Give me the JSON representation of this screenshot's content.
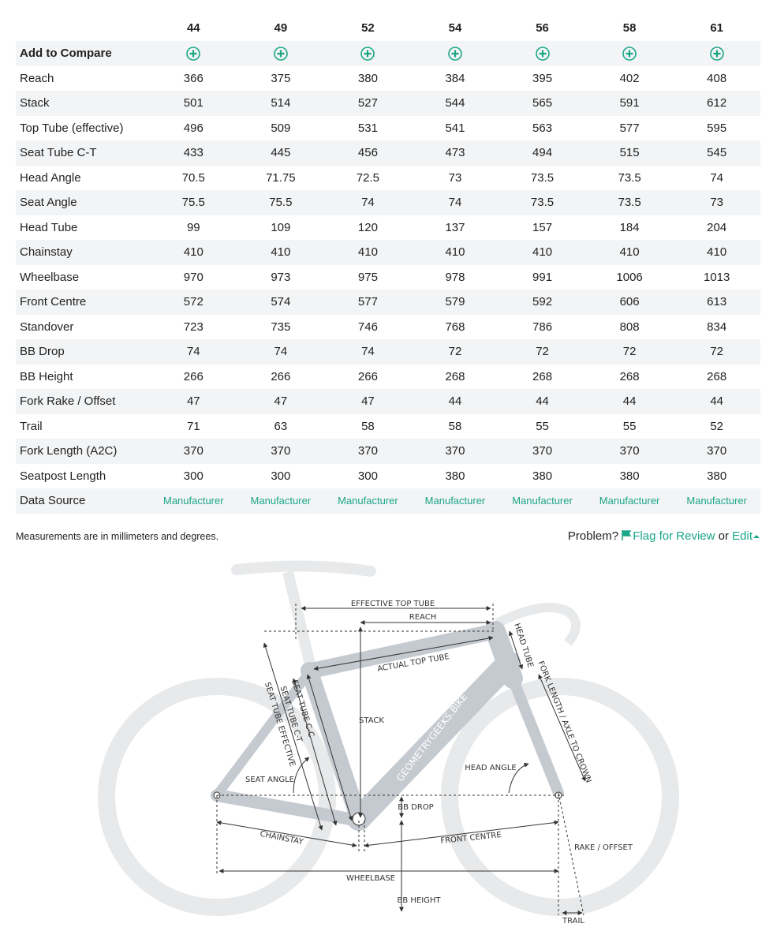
{
  "table": {
    "sizes": [
      44,
      49,
      52,
      54,
      56,
      58,
      61
    ],
    "compare_label": "Add to Compare",
    "rows": [
      {
        "label": "Reach",
        "values": [
          366,
          375,
          380,
          384,
          395,
          402,
          408
        ]
      },
      {
        "label": "Stack",
        "values": [
          501,
          514,
          527,
          544,
          565,
          591,
          612
        ]
      },
      {
        "label": "Top Tube (effective)",
        "values": [
          496,
          509,
          531,
          541,
          563,
          577,
          595
        ]
      },
      {
        "label": "Seat Tube C-T",
        "values": [
          433,
          445,
          456,
          473,
          494,
          515,
          545
        ]
      },
      {
        "label": "Head Angle",
        "values": [
          70.5,
          71.75,
          72.5,
          73,
          73.5,
          73.5,
          74
        ]
      },
      {
        "label": "Seat Angle",
        "values": [
          75.5,
          75.5,
          74,
          74,
          73.5,
          73.5,
          73
        ]
      },
      {
        "label": "Head Tube",
        "values": [
          99,
          109,
          120,
          137,
          157,
          184,
          204
        ]
      },
      {
        "label": "Chainstay",
        "values": [
          410,
          410,
          410,
          410,
          410,
          410,
          410
        ]
      },
      {
        "label": "Wheelbase",
        "values": [
          970,
          973,
          975,
          978,
          991,
          1006,
          1013
        ]
      },
      {
        "label": "Front Centre",
        "values": [
          572,
          574,
          577,
          579,
          592,
          606,
          613
        ]
      },
      {
        "label": "Standover",
        "values": [
          723,
          735,
          746,
          768,
          786,
          808,
          834
        ]
      },
      {
        "label": "BB Drop",
        "values": [
          74,
          74,
          74,
          72,
          72,
          72,
          72
        ]
      },
      {
        "label": "BB Height",
        "values": [
          266,
          266,
          266,
          268,
          268,
          268,
          268
        ]
      },
      {
        "label": "Fork Rake / Offset",
        "values": [
          47,
          47,
          47,
          44,
          44,
          44,
          44
        ]
      },
      {
        "label": "Trail",
        "values": [
          71,
          63,
          58,
          58,
          55,
          55,
          52
        ]
      },
      {
        "label": "Fork Length (A2C)",
        "values": [
          370,
          370,
          370,
          370,
          370,
          370,
          370
        ]
      },
      {
        "label": "Seatpost Length",
        "values": [
          300,
          300,
          300,
          380,
          380,
          380,
          380
        ]
      }
    ],
    "source_label": "Data Source",
    "sources": [
      "Manufacturer",
      "Manufacturer",
      "Manufacturer",
      "Manufacturer",
      "Manufacturer",
      "Manufacturer",
      "Manufacturer"
    ]
  },
  "footer": {
    "note": "Measurements are in millimeters and degrees.",
    "problem": "Problem?",
    "flag": "Flag for Review",
    "or": "or",
    "edit": "Edit"
  },
  "diagram": {
    "labels": [
      "EFFECTIVE TOP TUBE",
      "REACH",
      "HEAD TUBE",
      "ACTUAL TOP TUBE",
      "FORK LENGTH / AXLE TO CROWN",
      "SEAT TUBE C-C",
      "SEAT TUBE C-T",
      "SEAT TUBE EFFECTIVE",
      "GEOMETRYGEEKS.BIKE",
      "STACK",
      "HEAD ANGLE",
      "SEAT ANGLE",
      "BB DROP",
      "CHAINSTAY",
      "FRONT CENTRE",
      "RAKE / OFFSET",
      "WHEELBASE",
      "BB HEIGHT",
      "TRAIL"
    ]
  }
}
